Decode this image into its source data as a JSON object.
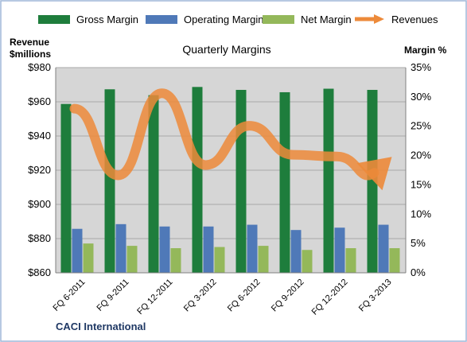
{
  "legend": {
    "gross": "Gross Margin",
    "operating": "Operating Margin",
    "net": "Net Margin",
    "revenues": "Revenues"
  },
  "colors": {
    "gross": "#1e7d3c",
    "operating": "#4f79b8",
    "net": "#94b85a",
    "revenues": "#ed8a3a",
    "plot_bg": "#d6d6d6",
    "border": "#9fb7d8"
  },
  "y_left_title": [
    "Revenue",
    "$millions"
  ],
  "y_right_title": "Margin  %",
  "footer": "CACI International",
  "chart_data": {
    "type": "bar",
    "title": "Quarterly Margins",
    "categories": [
      "FQ 6-2011",
      "FQ 9-2011",
      "FQ 12-2011",
      "FQ 3-2012",
      "FQ 6-2012",
      "FQ 9-2012",
      "FQ 12-2012",
      "FQ 3-2013"
    ],
    "series": [
      {
        "name": "Gross Margin",
        "axis": "right",
        "values": [
          28.8,
          31.3,
          30.3,
          31.7,
          31.2,
          30.8,
          31.4,
          31.2
        ]
      },
      {
        "name": "Operating Margin",
        "axis": "right",
        "values": [
          7.5,
          8.3,
          7.9,
          7.9,
          8.2,
          7.3,
          7.7,
          8.2
        ]
      },
      {
        "name": "Net Margin",
        "axis": "right",
        "values": [
          5.0,
          4.6,
          4.2,
          4.4,
          4.6,
          3.9,
          4.2,
          4.2
        ]
      },
      {
        "name": "Revenues",
        "type": "line",
        "axis": "left",
        "values": [
          956,
          917,
          965,
          923,
          946,
          929,
          928,
          912
        ]
      }
    ],
    "y_left": {
      "min": 860,
      "max": 980,
      "step": 20,
      "prefix": "$",
      "ticks": [
        "$860",
        "$880",
        "$900",
        "$920",
        "$940",
        "$960",
        "$980"
      ]
    },
    "y_right": {
      "min": 0,
      "max": 35,
      "step": 5,
      "suffix": "%",
      "ticks": [
        "0%",
        "5%",
        "10%",
        "15%",
        "20%",
        "25%",
        "30%",
        "35%"
      ]
    },
    "legend_position": "top",
    "grid": true
  }
}
